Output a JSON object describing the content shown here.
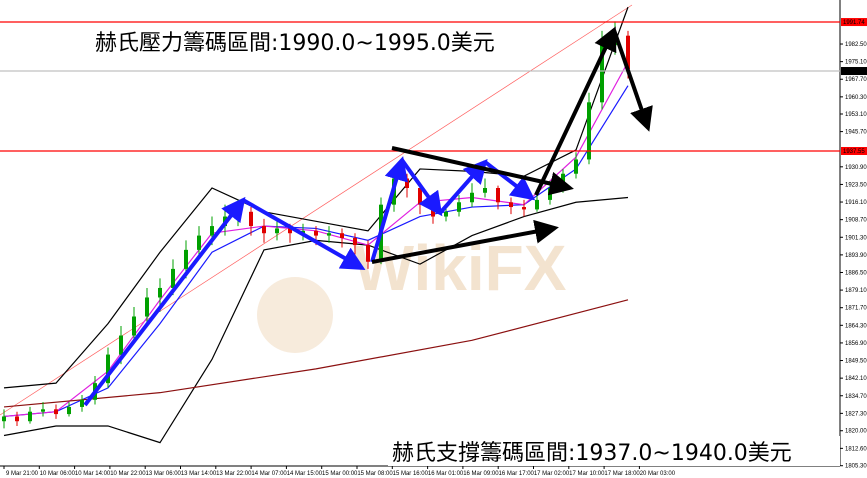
{
  "chart_data": {
    "type": "candlestick",
    "annotations": [
      "赫氏壓力籌碼區間:1990.0~1995.0美元",
      "赫氏支撐籌碼區間:1937.0~1940.0美元"
    ],
    "watermark": "WikiFX",
    "up_color": "#00a000",
    "down_color": "#e00000",
    "candles": [
      [
        1824,
        1829,
        1821,
        1826
      ],
      [
        1826,
        1828,
        1822,
        1824
      ],
      [
        1824,
        1830,
        1823,
        1828
      ],
      [
        1828,
        1832,
        1826,
        1829
      ],
      [
        1829,
        1831,
        1825,
        1827
      ],
      [
        1827,
        1832,
        1826,
        1830
      ],
      [
        1830,
        1835,
        1828,
        1833
      ],
      [
        1833,
        1843,
        1831,
        1840
      ],
      [
        1840,
        1855,
        1838,
        1852
      ],
      [
        1852,
        1864,
        1848,
        1860
      ],
      [
        1860,
        1872,
        1857,
        1868
      ],
      [
        1868,
        1880,
        1864,
        1876
      ],
      [
        1876,
        1884,
        1870,
        1880
      ],
      [
        1880,
        1892,
        1877,
        1888
      ],
      [
        1888,
        1900,
        1884,
        1896
      ],
      [
        1896,
        1906,
        1892,
        1902
      ],
      [
        1902,
        1910,
        1898,
        1906
      ],
      [
        1906,
        1915,
        1902,
        1910
      ],
      [
        1910,
        1917,
        1906,
        1912
      ],
      [
        1912,
        1914,
        1902,
        1906
      ],
      [
        1906,
        1909,
        1899,
        1903
      ],
      [
        1903,
        1908,
        1900,
        1905
      ],
      [
        1905,
        1907,
        1899,
        1903
      ],
      [
        1903,
        1907,
        1900,
        1904
      ],
      [
        1904,
        1906,
        1898,
        1902
      ],
      [
        1902,
        1906,
        1899,
        1903
      ],
      [
        1903,
        1905,
        1897,
        1901
      ],
      [
        1901,
        1903,
        1894,
        1898
      ],
      [
        1898,
        1900,
        1888,
        1891
      ],
      [
        1891,
        1918,
        1890,
        1915
      ],
      [
        1915,
        1930,
        1912,
        1926
      ],
      [
        1926,
        1928,
        1918,
        1922
      ],
      [
        1922,
        1924,
        1911,
        1915
      ],
      [
        1915,
        1917,
        1907,
        1910
      ],
      [
        1910,
        1915,
        1908,
        1912
      ],
      [
        1912,
        1919,
        1910,
        1916
      ],
      [
        1916,
        1924,
        1914,
        1920
      ],
      [
        1920,
        1926,
        1918,
        1922
      ],
      [
        1922,
        1923,
        1913,
        1916
      ],
      [
        1916,
        1918,
        1911,
        1914
      ],
      [
        1914,
        1917,
        1910,
        1913
      ],
      [
        1913,
        1920,
        1912,
        1917
      ],
      [
        1917,
        1925,
        1915,
        1922
      ],
      [
        1922,
        1930,
        1920,
        1928
      ],
      [
        1928,
        1937,
        1926,
        1934
      ],
      [
        1934,
        1962,
        1932,
        1958
      ],
      [
        1958,
        1988,
        1955,
        1982
      ],
      [
        1982,
        1992,
        1978,
        1986
      ],
      [
        1986,
        1988,
        1968,
        1972
      ]
    ],
    "series": [
      {
        "color": "#000000",
        "x": [
          0,
          4,
          8,
          12,
          16,
          20,
          24,
          28,
          32,
          36,
          40,
          44,
          48
        ],
        "values": [
          1838,
          1840,
          1865,
          1895,
          1922,
          1912,
          1908,
          1904,
          1930,
          1929,
          1927,
          1938,
          1998
        ]
      },
      {
        "color": "#000000",
        "x": [
          0,
          4,
          8,
          12,
          16,
          20,
          24,
          28,
          32,
          36,
          40,
          44,
          48
        ],
        "values": [
          1818,
          1822,
          1822,
          1815,
          1850,
          1896,
          1900,
          1898,
          1890,
          1902,
          1910,
          1916,
          1918
        ]
      },
      {
        "color": "#1a1aff",
        "x": [
          0,
          4,
          8,
          12,
          16,
          20,
          24,
          28,
          32,
          36,
          40,
          44,
          48
        ],
        "values": [
          1826,
          1828,
          1838,
          1865,
          1895,
          1906,
          1905,
          1900,
          1910,
          1914,
          1915,
          1930,
          1965
        ]
      },
      {
        "color": "#e020e0",
        "x": [
          0,
          4,
          8,
          12,
          16,
          20,
          24,
          28,
          32,
          36,
          40,
          44,
          48
        ],
        "values": [
          1826,
          1828,
          1845,
          1875,
          1903,
          1906,
          1904,
          1898,
          1916,
          1918,
          1915,
          1935,
          1975
        ]
      },
      {
        "color": "#8b1010",
        "x": [
          0,
          12,
          24,
          36,
          48
        ],
        "values": [
          1830,
          1836,
          1846,
          1858,
          1875
        ]
      }
    ],
    "price_lines": [
      {
        "value": 1991.74,
        "color": "#ff0000",
        "label_color": "#ff0000"
      },
      {
        "value": 1971.16,
        "color": "#c0c0c0",
        "label_color": "#000000"
      },
      {
        "value": 1937.55,
        "color": "#ff0000",
        "label_color": "#ff0000"
      }
    ],
    "ylim": [
      1803.5,
      2001.0
    ],
    "yticks": [
      {
        "value": 1982.5,
        "label": "1982.50"
      },
      {
        "value": 1975.1,
        "label": "1975.10"
      },
      {
        "value": 1967.7,
        "label": "1967.70"
      },
      {
        "value": 1960.3,
        "label": "1960.30"
      },
      {
        "value": 1953.1,
        "label": "1953.10"
      },
      {
        "value": 1945.7,
        "label": "1945.70"
      },
      {
        "value": 1930.9,
        "label": "1930.90"
      },
      {
        "value": 1923.5,
        "label": "1923.50"
      },
      {
        "value": 1916.1,
        "label": "1916.10"
      },
      {
        "value": 1908.7,
        "label": "1908.70"
      },
      {
        "value": 1901.3,
        "label": "1901.30"
      },
      {
        "value": 1893.9,
        "label": "1893.90"
      },
      {
        "value": 1886.5,
        "label": "1886.50"
      },
      {
        "value": 1879.1,
        "label": "1879.10"
      },
      {
        "value": 1871.7,
        "label": "1871.70"
      },
      {
        "value": 1864.3,
        "label": "1864.30"
      },
      {
        "value": 1856.9,
        "label": "1856.90"
      },
      {
        "value": 1849.5,
        "label": "1849.50"
      },
      {
        "value": 1842.1,
        "label": "1842.10"
      },
      {
        "value": 1834.7,
        "label": "1834.70"
      },
      {
        "value": 1827.3,
        "label": "1827.30"
      },
      {
        "value": 1820.0,
        "label": "1820.00"
      },
      {
        "value": 1812.6,
        "label": "1812.60"
      },
      {
        "value": 1805.3,
        "label": "1805.30"
      }
    ],
    "x_labels": [
      "9 Mar 21:00",
      "10 Mar 06:00",
      "10 Mar 14:00",
      "10 Mar 22:00",
      "13 Mar 06:00",
      "13 Mar 14:00",
      "13 Mar 22:00",
      "14 Mar 07:00",
      "14 Mar 15:00",
      "15 Mar 00:00",
      "15 Mar 08:00",
      "15 Mar 16:00",
      "16 Mar 01:00",
      "16 Mar 09:00",
      "16 Mar 17:00",
      "17 Mar 02:00",
      "17 Mar 10:00",
      "17 Mar 18:00",
      "20 Mar 03:00"
    ]
  }
}
